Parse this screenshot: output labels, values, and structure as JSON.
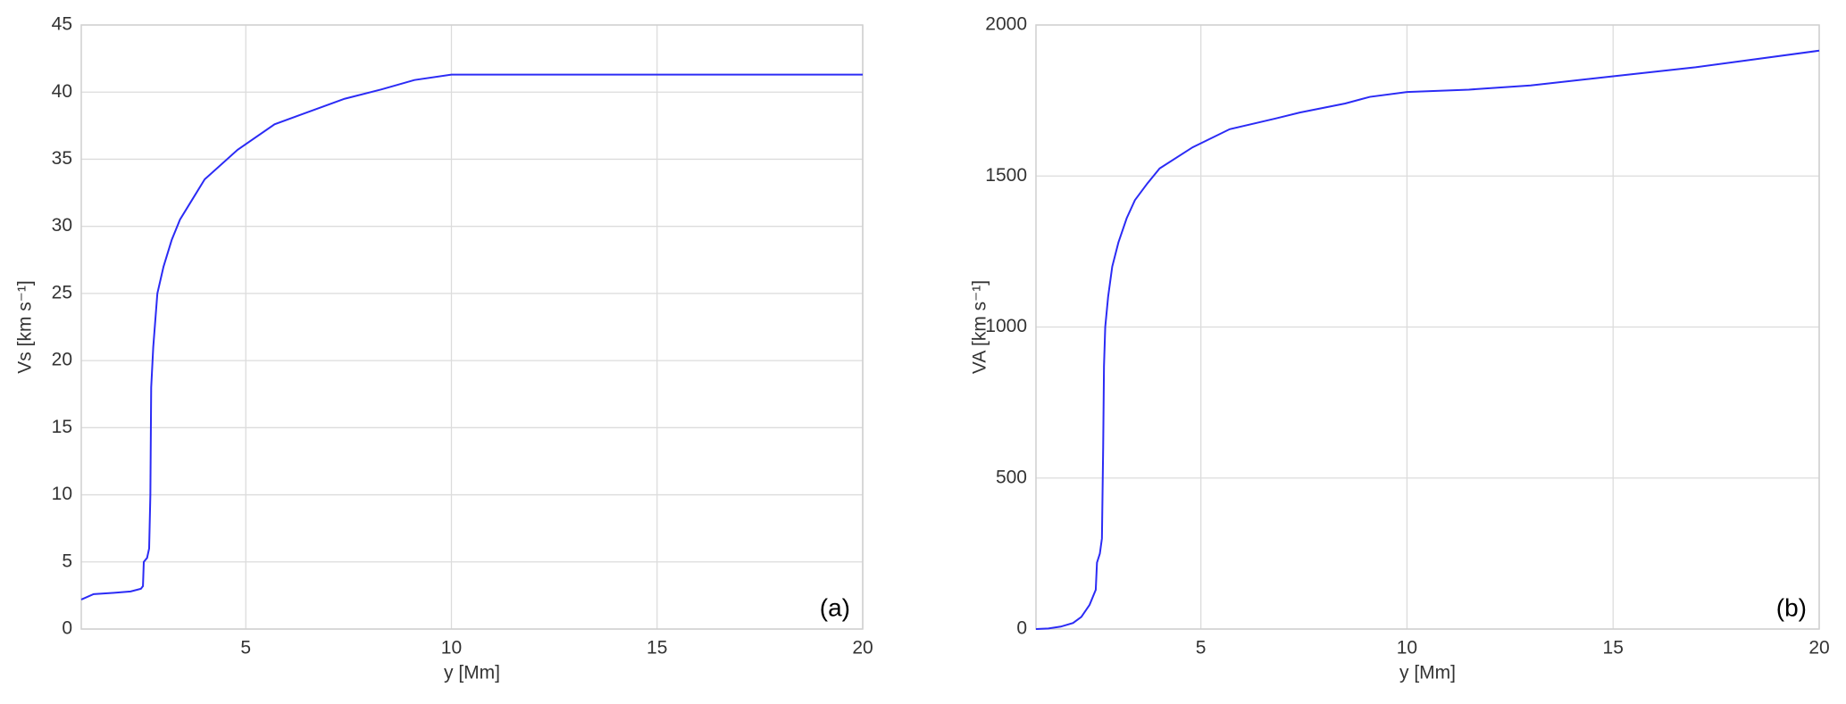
{
  "chart_data": [
    {
      "type": "line",
      "xlabel": "y [Mm]",
      "ylabel": "Vs [km s⁻¹]",
      "annotation": "(a)",
      "xlim": [
        1,
        20
      ],
      "ylim": [
        0,
        45
      ],
      "xticks": [
        5,
        10,
        15,
        20
      ],
      "yticks": [
        0,
        5,
        10,
        15,
        20,
        25,
        30,
        35,
        40,
        45
      ],
      "grid": true,
      "x": [
        1.0,
        1.3,
        1.8,
        2.2,
        2.45,
        2.5,
        2.52,
        2.6,
        2.65,
        2.68,
        2.7,
        2.75,
        2.85,
        3.0,
        3.2,
        3.4,
        3.7,
        4.0,
        4.8,
        5.7,
        6.5,
        7.4,
        8.3,
        9.1,
        10,
        20
      ],
      "series": [
        {
          "color": "#2b2bf5",
          "values": [
            2.2,
            2.6,
            2.7,
            2.8,
            3.0,
            3.2,
            5.0,
            5.3,
            6,
            10,
            18,
            21,
            25,
            27,
            29,
            30.5,
            32,
            33.5,
            35.7,
            37.6,
            38.5,
            39.5,
            40.2,
            40.9,
            41.3,
            41.3
          ]
        }
      ]
    },
    {
      "type": "line",
      "xlabel": "y [Mm]",
      "ylabel": "VA [km s⁻¹]",
      "annotation": "(b)",
      "xlim": [
        1,
        20
      ],
      "ylim": [
        0,
        2000
      ],
      "xticks": [
        5,
        10,
        15,
        20
      ],
      "yticks": [
        0,
        500,
        1000,
        1500,
        2000
      ],
      "grid": true,
      "x": [
        1.0,
        1.3,
        1.6,
        1.9,
        2.1,
        2.3,
        2.45,
        2.48,
        2.55,
        2.6,
        2.63,
        2.65,
        2.68,
        2.75,
        2.85,
        3.0,
        3.2,
        3.4,
        3.7,
        4.0,
        4.8,
        5.7,
        6.8,
        7.4,
        8.5,
        9.1,
        10,
        11.5,
        13,
        15,
        17,
        20
      ],
      "series": [
        {
          "color": "#2b2bf5",
          "values": [
            0,
            2,
            8,
            20,
            40,
            80,
            130,
            220,
            250,
            300,
            600,
            870,
            1000,
            1100,
            1200,
            1280,
            1360,
            1420,
            1475,
            1525,
            1595,
            1655,
            1690,
            1710,
            1740,
            1762,
            1778,
            1786,
            1800,
            1830,
            1860,
            1915
          ]
        }
      ]
    }
  ]
}
